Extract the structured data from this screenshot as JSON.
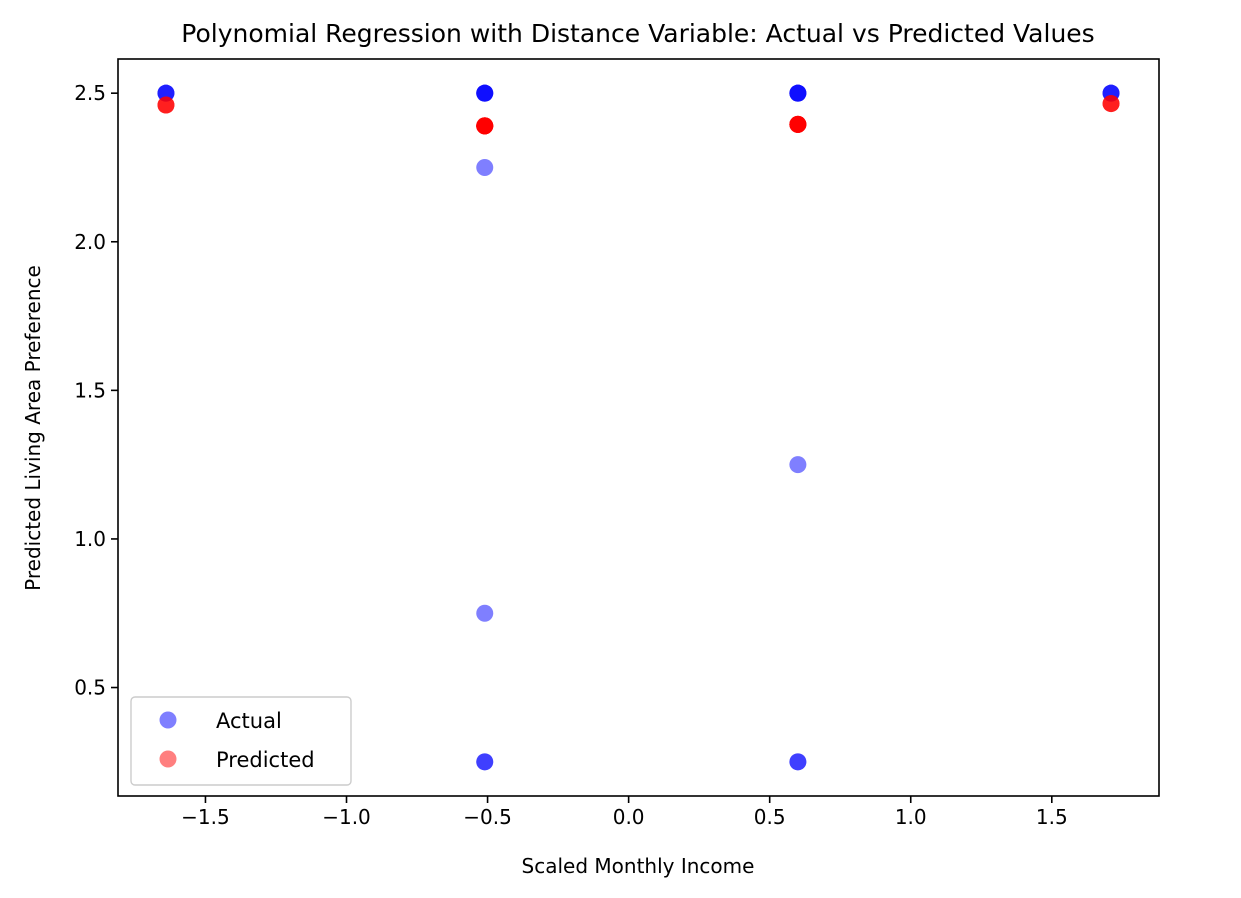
{
  "chart_data": {
    "type": "scatter",
    "title": "Polynomial Regression with Distance Variable: Actual vs Predicted Values",
    "xlabel": "Scaled Monthly Income",
    "ylabel": "Predicted Living Area Preference",
    "xlim": [
      -1.81,
      1.88
    ],
    "ylim": [
      0.135,
      2.615
    ],
    "x_ticks": [
      -1.5,
      -1.0,
      -0.5,
      0.0,
      0.5,
      1.0,
      1.5
    ],
    "x_tick_labels": [
      "−1.5",
      "−1.0",
      "−0.5",
      "0.0",
      "0.5",
      "1.0",
      "1.5"
    ],
    "y_ticks": [
      0.5,
      1.0,
      1.5,
      2.0,
      2.5
    ],
    "y_tick_labels": [
      "0.5",
      "1.0",
      "1.5",
      "2.0",
      "2.5"
    ],
    "grid": false,
    "legend_position": "lower-left",
    "series": [
      {
        "name": "Actual",
        "color": "#0000ff",
        "alpha": 0.5,
        "x": [
          -1.64,
          -1.64,
          -1.64,
          -0.51,
          -0.51,
          -0.51,
          -0.51,
          -0.51,
          -0.51,
          -0.51,
          -0.51,
          0.6,
          0.6,
          0.6,
          0.6,
          0.6,
          0.6,
          0.6,
          1.71,
          1.71,
          1.71
        ],
        "y": [
          2.5,
          2.5,
          2.5,
          2.5,
          2.5,
          2.5,
          2.5,
          2.25,
          0.75,
          0.25,
          0.25,
          2.5,
          2.5,
          2.5,
          2.5,
          1.25,
          0.25,
          0.25,
          2.5,
          2.5,
          2.5
        ]
      },
      {
        "name": "Predicted",
        "color": "#ff0000",
        "alpha": 0.5,
        "x": [
          -1.64,
          -1.64,
          -1.64,
          -0.51,
          -0.51,
          -0.51,
          -0.51,
          -0.51,
          -0.51,
          -0.51,
          -0.51,
          0.6,
          0.6,
          0.6,
          0.6,
          0.6,
          0.6,
          0.6,
          1.71,
          1.71,
          1.71
        ],
        "y": [
          2.46,
          2.46,
          2.46,
          2.39,
          2.39,
          2.39,
          2.39,
          2.39,
          2.39,
          2.39,
          2.39,
          2.395,
          2.395,
          2.395,
          2.395,
          2.395,
          2.395,
          2.395,
          2.465,
          2.465,
          2.465
        ]
      }
    ]
  }
}
